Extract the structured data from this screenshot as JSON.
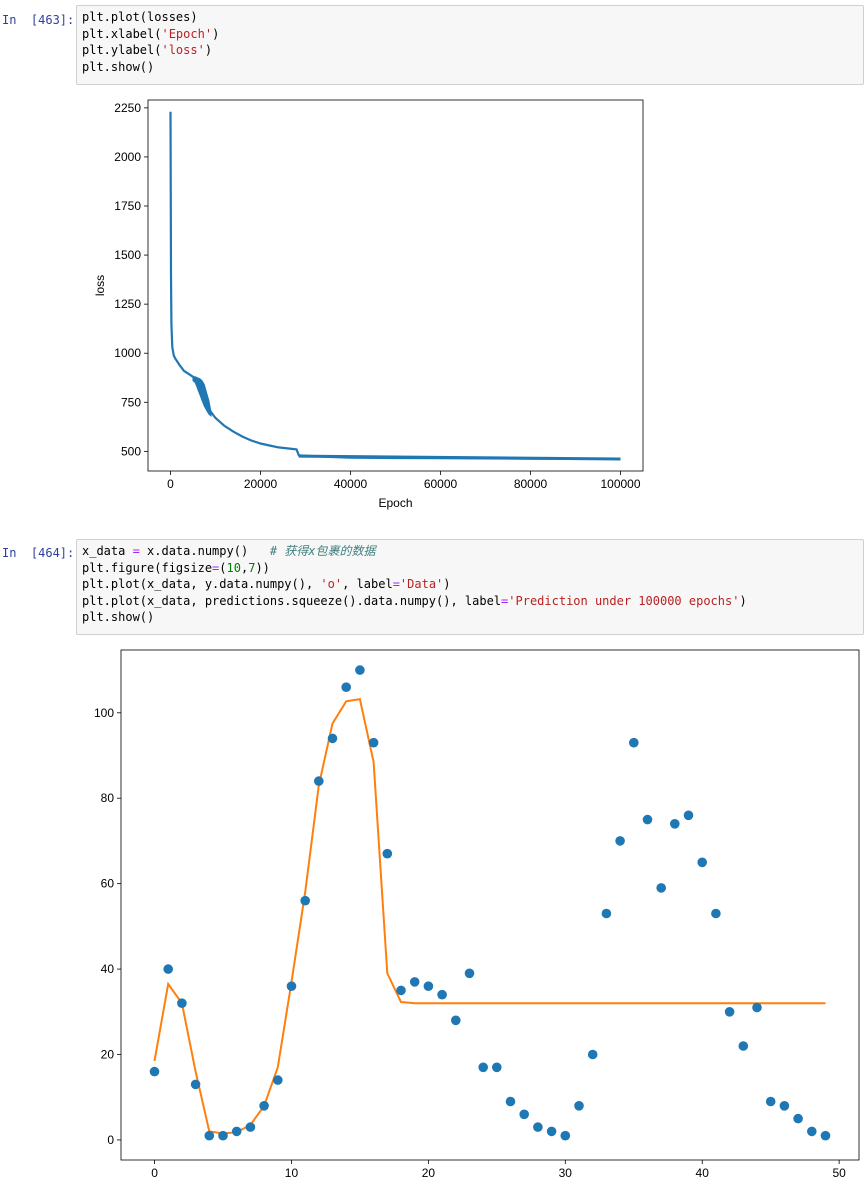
{
  "cells": [
    {
      "prompt": "In  [463]:",
      "code": [
        [
          {
            "t": "plt.plot(losses)",
            "c": ""
          }
        ],
        [
          {
            "t": "plt.xlabel(",
            "c": ""
          },
          {
            "t": "'Epoch'",
            "c": "kw-str"
          },
          {
            "t": ")",
            "c": ""
          }
        ],
        [
          {
            "t": "plt.ylabel(",
            "c": ""
          },
          {
            "t": "'loss'",
            "c": "kw-str"
          },
          {
            "t": ")",
            "c": ""
          }
        ],
        [
          {
            "t": "plt.show()",
            "c": ""
          }
        ]
      ]
    },
    {
      "prompt": "In  [464]:",
      "code": [
        [
          {
            "t": "x_data ",
            "c": ""
          },
          {
            "t": "=",
            "c": "kw-op"
          },
          {
            "t": " x.data.numpy()   ",
            "c": ""
          },
          {
            "t": "# 获得x包裹的数据",
            "c": "kw-cm"
          }
        ],
        [
          {
            "t": "plt.figure(figsize",
            "c": ""
          },
          {
            "t": "=",
            "c": "kw-op"
          },
          {
            "t": "(",
            "c": ""
          },
          {
            "t": "10",
            "c": "kw-num"
          },
          {
            "t": ",",
            "c": ""
          },
          {
            "t": "7",
            "c": "kw-num"
          },
          {
            "t": "))",
            "c": ""
          }
        ],
        [
          {
            "t": "plt.plot(x_data, y.data.numpy(), ",
            "c": ""
          },
          {
            "t": "'o'",
            "c": "kw-str"
          },
          {
            "t": ", label",
            "c": ""
          },
          {
            "t": "=",
            "c": "kw-op"
          },
          {
            "t": "'Data'",
            "c": "kw-str"
          },
          {
            "t": ")",
            "c": ""
          }
        ],
        [
          {
            "t": "plt.plot(x_data, predictions.squeeze().data.numpy(), label",
            "c": ""
          },
          {
            "t": "=",
            "c": "kw-op"
          },
          {
            "t": "'Prediction under 100000 epochs'",
            "c": "kw-str"
          },
          {
            "t": ")",
            "c": ""
          }
        ],
        [
          {
            "t": "plt.show()",
            "c": ""
          }
        ]
      ]
    }
  ],
  "chart_data": [
    {
      "type": "line",
      "xlabel": "Epoch",
      "ylabel": "loss",
      "xlim": [
        -5000,
        105000
      ],
      "ylim": [
        400,
        2290
      ],
      "xticks": [
        0,
        20000,
        40000,
        60000,
        80000,
        100000
      ],
      "yticks": [
        500,
        750,
        1000,
        1250,
        1500,
        1750,
        2000,
        2250
      ],
      "color": "#1f77b4",
      "series": [
        {
          "x": [
            0,
            100,
            200,
            400,
            700,
            1000,
            2000,
            3000,
            4000,
            5000,
            6000,
            7000,
            8000,
            9000,
            10000,
            12000,
            14000,
            16000,
            18000,
            20000,
            22000,
            24000,
            26000,
            28000,
            28500,
            30000,
            35000,
            40000,
            50000,
            60000,
            70000,
            80000,
            90000,
            100000
          ],
          "y": [
            2230,
            1400,
            1150,
            1030,
            990,
            975,
            940,
            910,
            895,
            880,
            860,
            800,
            740,
            700,
            670,
            630,
            600,
            575,
            555,
            540,
            530,
            520,
            515,
            510,
            480,
            478,
            472,
            468,
            466,
            465,
            464,
            463,
            463,
            463
          ]
        }
      ],
      "band": {
        "x": [
          5000,
          5500,
          6000,
          6500,
          7000,
          7500,
          8000,
          8500,
          9000
        ],
        "lo": [
          860,
          850,
          820,
          790,
          760,
          730,
          710,
          690,
          680
        ],
        "hi": [
          880,
          880,
          875,
          870,
          860,
          840,
          800,
          760,
          700
        ]
      }
    },
    {
      "type": "scatter",
      "xlim": [
        -2.45,
        51.45
      ],
      "ylim": [
        -4.7,
        114.7
      ],
      "xticks": [
        0,
        10,
        20,
        30,
        40,
        50
      ],
      "yticks": [
        0,
        20,
        40,
        60,
        80,
        100
      ],
      "series": [
        {
          "name": "Data",
          "marker": "o",
          "color": "#1f77b4",
          "x": [
            0,
            1,
            2,
            3,
            4,
            5,
            6,
            7,
            8,
            9,
            10,
            11,
            12,
            13,
            14,
            15,
            16,
            17,
            18,
            19,
            20,
            21,
            22,
            23,
            24,
            25,
            26,
            27,
            28,
            29,
            30,
            31,
            32,
            33,
            34,
            35,
            36,
            37,
            38,
            39,
            40,
            41,
            42,
            43,
            44,
            45,
            46,
            47,
            48,
            49
          ],
          "y": [
            16,
            40,
            32,
            13,
            1,
            1,
            2,
            3,
            8,
            14,
            36,
            56,
            84,
            94,
            106,
            110,
            93,
            67,
            35,
            37,
            36,
            34,
            28,
            39,
            17,
            17,
            9,
            6,
            3,
            2,
            1,
            8,
            20,
            53,
            70,
            93,
            75,
            59,
            74,
            76,
            65,
            53,
            30,
            22,
            31,
            9,
            8,
            5,
            2,
            1
          ]
        },
        {
          "name": "Prediction under 100000 epochs",
          "marker": "line",
          "color": "#ff7f0e",
          "x": [
            0,
            1,
            2,
            3,
            4,
            5,
            6,
            7,
            8,
            9,
            10,
            11,
            12,
            13,
            14,
            15,
            16,
            17,
            18,
            19,
            20,
            21,
            22,
            23,
            24,
            25,
            26,
            27,
            28,
            29,
            30,
            31,
            32,
            33,
            34,
            35,
            36,
            37,
            38,
            39,
            40,
            41,
            42,
            43,
            44,
            45,
            46,
            47,
            48,
            49
          ],
          "y": [
            18.5,
            36.5,
            32,
            16,
            2,
            1.5,
            1.8,
            3.5,
            8,
            17,
            37,
            58,
            83,
            97.5,
            102.7,
            103.2,
            88.5,
            39,
            32.3,
            32,
            32,
            32,
            32,
            32,
            32,
            32,
            32,
            32,
            32,
            32,
            32,
            32,
            32,
            32,
            32,
            32,
            32,
            32,
            32,
            32,
            32,
            32,
            32,
            32,
            32,
            32,
            32,
            32,
            32,
            32
          ]
        }
      ]
    }
  ]
}
